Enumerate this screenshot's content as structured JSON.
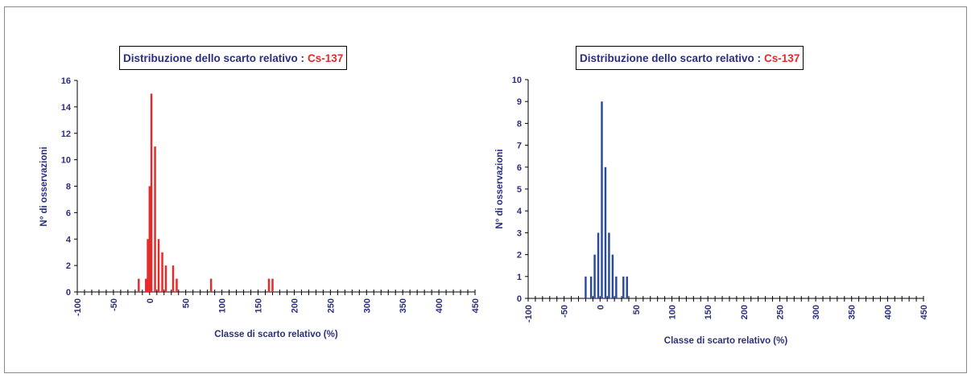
{
  "chart_data": [
    {
      "type": "bar",
      "title": "Distribuzione dello scarto relativo :",
      "title_highlight": "Cs-137",
      "xlabel": "Classe di scarto relativo (%)",
      "ylabel": "N° di osservazioni",
      "bar_color": "#e32b2b",
      "xlim": [
        -100,
        450
      ],
      "ylim": [
        0,
        16
      ],
      "yticks": [
        0,
        2,
        4,
        6,
        8,
        10,
        12,
        14,
        16
      ],
      "xticks": [
        -100,
        -50,
        0,
        50,
        100,
        150,
        200,
        250,
        300,
        350,
        400,
        450
      ],
      "bin_width": 5,
      "data": [
        {
          "x": -15,
          "y": 1
        },
        {
          "x": -5,
          "y": 1
        },
        {
          "x": -2.5,
          "y": 4
        },
        {
          "x": 0,
          "y": 8
        },
        {
          "x": 2.5,
          "y": 15
        },
        {
          "x": 7.5,
          "y": 11
        },
        {
          "x": 12.5,
          "y": 4
        },
        {
          "x": 17.5,
          "y": 3
        },
        {
          "x": 22.5,
          "y": 2
        },
        {
          "x": 32.5,
          "y": 2
        },
        {
          "x": 37.5,
          "y": 1
        },
        {
          "x": 85,
          "y": 1
        },
        {
          "x": 165,
          "y": 1
        },
        {
          "x": 170,
          "y": 1
        }
      ]
    },
    {
      "type": "bar",
      "title": "Distribuzione dello scarto relativo :",
      "title_highlight": "Cs-137",
      "xlabel": "Classe di scarto relativo (%)",
      "ylabel": "N° di osservazioni",
      "bar_color": "#2a4a9c",
      "xlim": [
        -100,
        450
      ],
      "ylim": [
        0,
        10
      ],
      "yticks": [
        0,
        1,
        2,
        3,
        4,
        5,
        6,
        7,
        8,
        9,
        10
      ],
      "xticks": [
        -100,
        -50,
        0,
        50,
        100,
        150,
        200,
        250,
        300,
        350,
        400,
        450
      ],
      "bin_width": 5,
      "data": [
        {
          "x": -20,
          "y": 1
        },
        {
          "x": -12.5,
          "y": 1
        },
        {
          "x": -7.5,
          "y": 2
        },
        {
          "x": -2.5,
          "y": 3
        },
        {
          "x": 2.5,
          "y": 9
        },
        {
          "x": 7.5,
          "y": 6
        },
        {
          "x": 12.5,
          "y": 3
        },
        {
          "x": 17.5,
          "y": 2
        },
        {
          "x": 22.5,
          "y": 1
        },
        {
          "x": 32.5,
          "y": 1
        },
        {
          "x": 37.5,
          "y": 1
        }
      ]
    }
  ]
}
